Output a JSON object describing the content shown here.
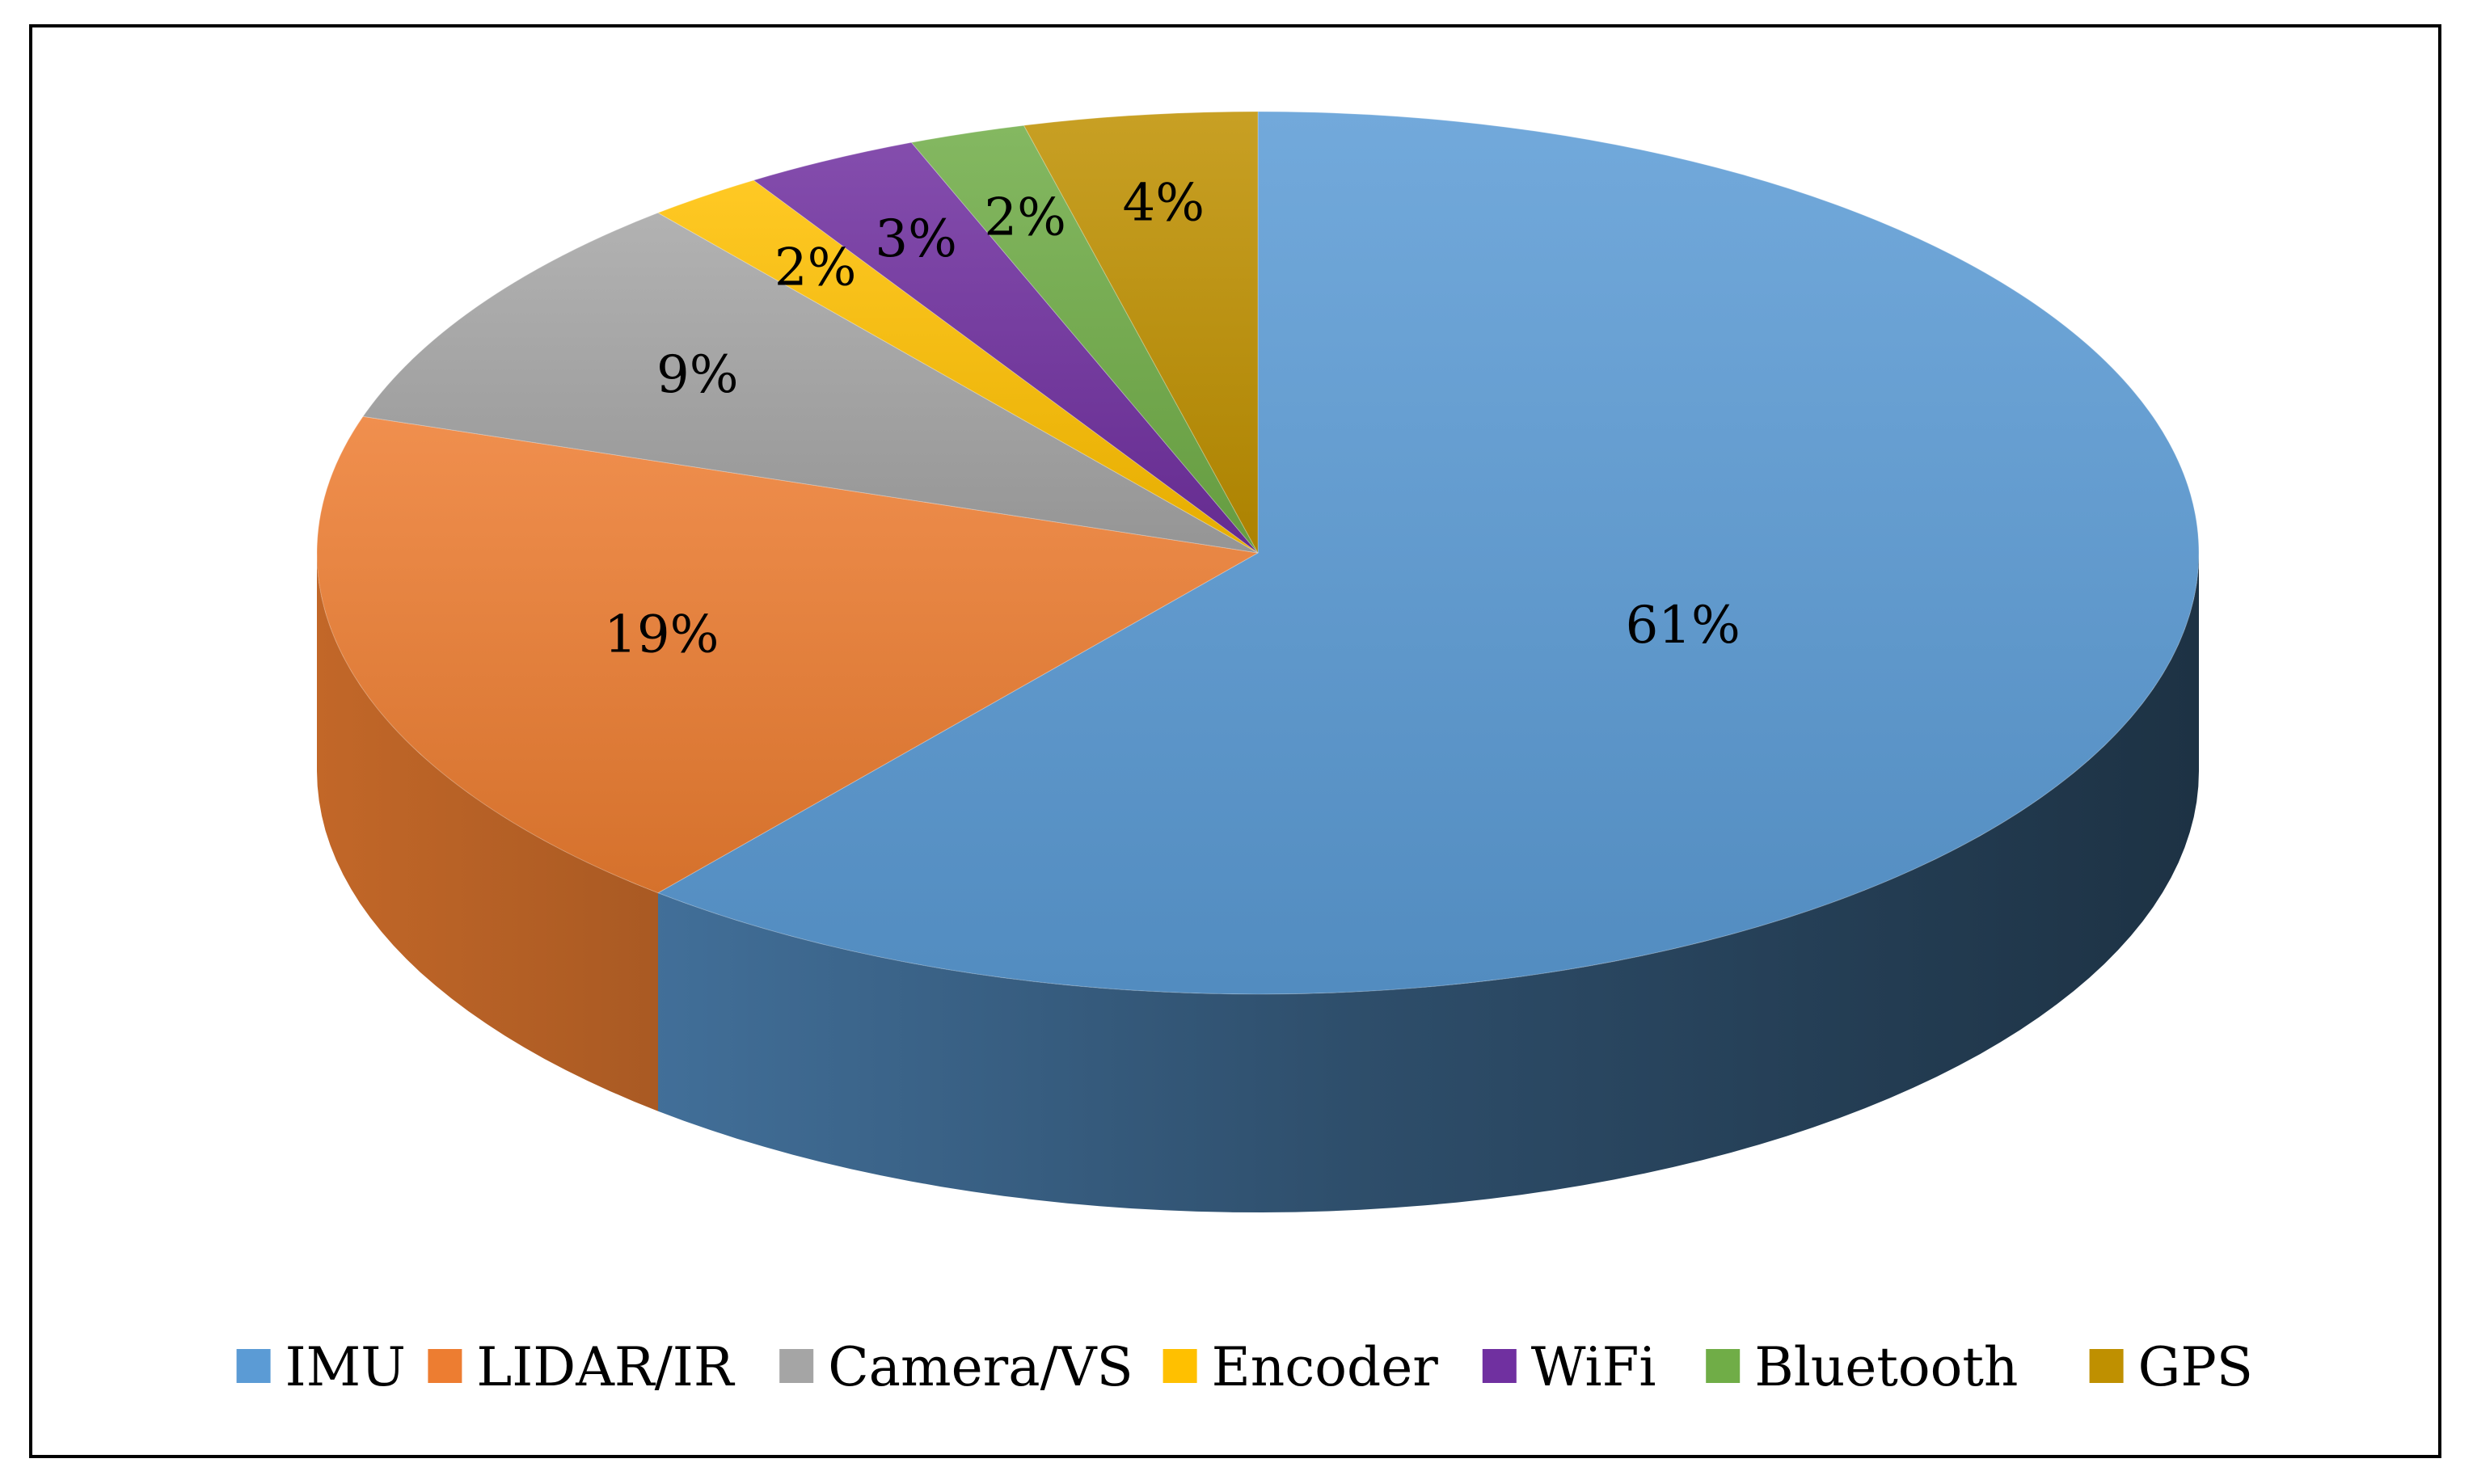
{
  "chart_data": {
    "type": "pie",
    "style": "3d",
    "title": "",
    "legend_position": "bottom",
    "slices": [
      {
        "name": "IMU",
        "value": 61,
        "label": "61%",
        "color": "#5b9bd5"
      },
      {
        "name": "LIDAR/IR",
        "value": 19,
        "label": "19%",
        "color": "#ed7d31"
      },
      {
        "name": "Camera/VS",
        "value": 9,
        "label": "9%",
        "color": "#a5a5a5"
      },
      {
        "name": "Encoder",
        "value": 2,
        "label": "2%",
        "color": "#ffc000"
      },
      {
        "name": "WiFi",
        "value": 3,
        "label": "3%",
        "color": "#7030a0"
      },
      {
        "name": "Bluetooth",
        "value": 2,
        "label": "2%",
        "color": "#70ad47"
      },
      {
        "name": "GPS",
        "value": 4,
        "label": "4%",
        "color": "#bf9000"
      }
    ]
  }
}
